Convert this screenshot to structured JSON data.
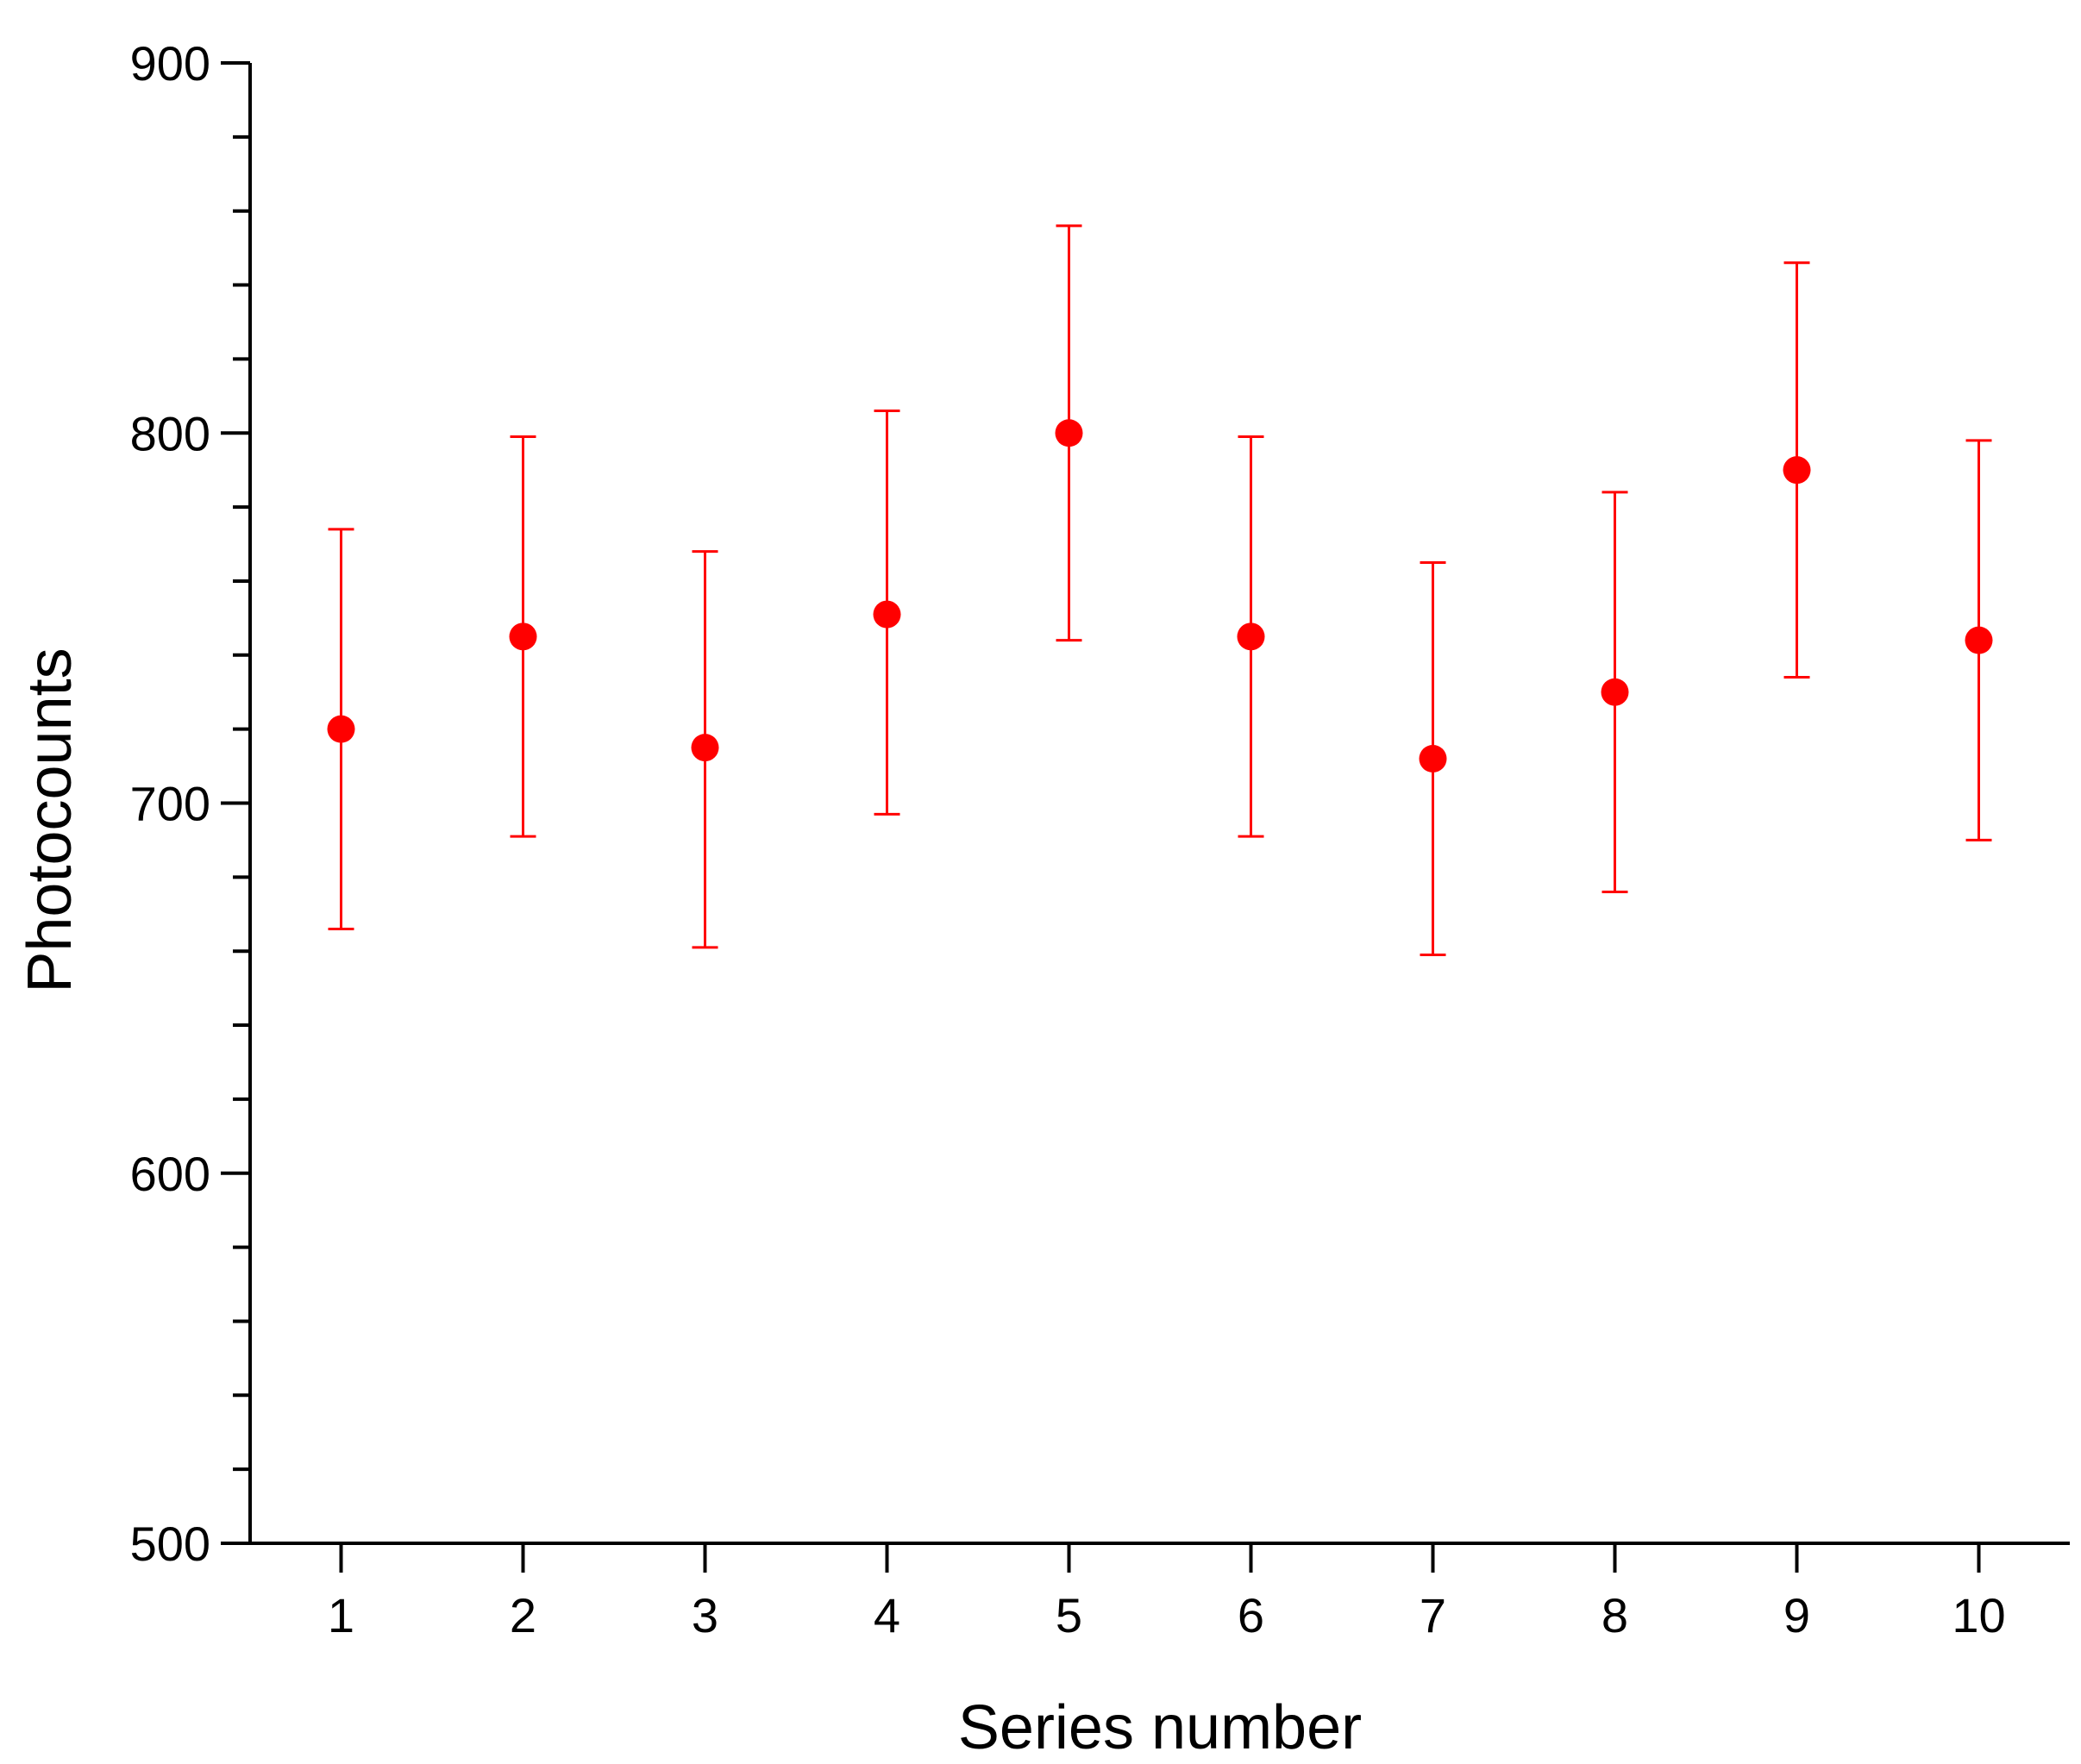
{
  "chart_data": {
    "type": "scatter",
    "title": "",
    "xlabel": "Series number",
    "ylabel": "Photocounts",
    "xlim": [
      0.5,
      10.5
    ],
    "ylim": [
      500,
      900
    ],
    "x_ticks": [
      1,
      2,
      3,
      4,
      5,
      6,
      7,
      8,
      9,
      10
    ],
    "y_ticks": [
      500,
      600,
      700,
      800,
      900
    ],
    "y_minor_step": 20,
    "grid": false,
    "legend": "none",
    "marker_color": "#ff0000",
    "series": [
      {
        "x": [
          1,
          2,
          3,
          4,
          5,
          6,
          7,
          8,
          9,
          10
        ],
        "y": [
          720,
          745,
          715,
          751,
          800,
          745,
          712,
          730,
          790,
          744
        ],
        "error_low": [
          666,
          691,
          661,
          697,
          744,
          691,
          659,
          676,
          734,
          690
        ],
        "error_high": [
          774,
          799,
          768,
          806,
          856,
          799,
          765,
          784,
          846,
          798
        ]
      }
    ]
  }
}
